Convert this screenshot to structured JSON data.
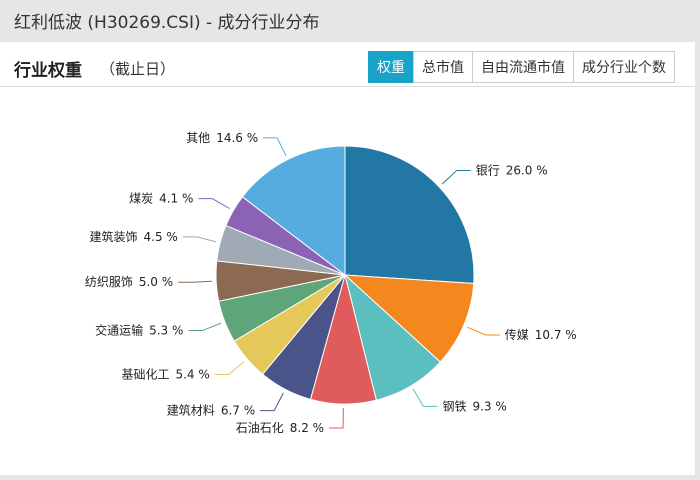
{
  "header": {
    "title": "红利低波 (H30269.CSI) - 成分行业分布"
  },
  "panel": {
    "title": "行业权重",
    "subtitle": "（截止日）",
    "tabs": [
      "权重",
      "总市值",
      "自由流通市值",
      "成分行业个数"
    ],
    "active_tab": 0
  },
  "chart_data": {
    "type": "pie",
    "categories": [
      "银行",
      "传媒",
      "钢铁",
      "石油石化",
      "建筑材料",
      "基础化工",
      "交通运输",
      "纺织服饰",
      "建筑装饰",
      "煤炭",
      "其他"
    ],
    "values": [
      26.0,
      10.7,
      9.3,
      8.2,
      6.7,
      5.4,
      5.3,
      5.0,
      4.5,
      4.1,
      14.6
    ],
    "value_labels": [
      "26.0 %",
      "10.7 %",
      "9.3 %",
      "8.2 %",
      "6.7 %",
      "5.4 %",
      "5.3 %",
      "5.0 %",
      "4.5 %",
      "4.1 %",
      "14.6 %"
    ],
    "colors": [
      "#2277a4",
      "#f5871f",
      "#5bbfc0",
      "#e05c5c",
      "#4a548a",
      "#e5c85a",
      "#5fa57a",
      "#8c6a52",
      "#a0aab4",
      "#8a63b5",
      "#56acdf"
    ]
  }
}
